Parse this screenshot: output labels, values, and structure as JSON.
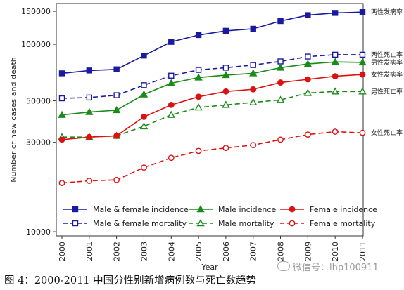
{
  "chart_data": {
    "type": "line",
    "y_scale": "log",
    "ylim": [
      9500,
      165000
    ],
    "ylabel": "Number of new cases and death",
    "xlabel": "Year",
    "categories": [
      "2000",
      "2001",
      "2002",
      "2003",
      "2004",
      "2005",
      "2006",
      "2007",
      "2008",
      "2009",
      "2010",
      "2011"
    ],
    "y_ticks": [
      10000,
      30000,
      50000,
      100000,
      150000
    ],
    "y_tick_labels": [
      "10000",
      "30000",
      "50000",
      "100000",
      "150000"
    ],
    "grid": false,
    "series": [
      {
        "name": "Male & female incidence",
        "end_label": "两性发病率",
        "color": "#1a1aa0",
        "style": "solid",
        "marker": "square-filled",
        "values": [
          70000,
          72500,
          73500,
          87000,
          103000,
          112000,
          118000,
          121000,
          133000,
          143000,
          147000,
          148500
        ]
      },
      {
        "name": "Male & female mortality",
        "end_label": "两性死亡率",
        "color": "#1a1aa0",
        "style": "dashed",
        "marker": "square-open",
        "values": [
          51500,
          52000,
          53500,
          60500,
          68000,
          73000,
          75000,
          77500,
          81000,
          86000,
          88000,
          88000
        ]
      },
      {
        "name": "Male incidence",
        "end_label": "男性发病率",
        "color": "#1a8a1a",
        "style": "solid",
        "marker": "triangle-filled",
        "values": [
          42000,
          43500,
          44500,
          54000,
          62000,
          66500,
          68500,
          70000,
          75000,
          78500,
          80500,
          80000
        ]
      },
      {
        "name": "Male mortality",
        "end_label": "男性死亡率",
        "color": "#1a8a1a",
        "style": "dashed",
        "marker": "triangle-open",
        "values": [
          32000,
          32000,
          32500,
          36500,
          42000,
          46000,
          47500,
          49000,
          50500,
          55000,
          56000,
          56000
        ]
      },
      {
        "name": "Female incidence",
        "end_label": "女性发病率",
        "color": "#dd1111",
        "style": "solid",
        "marker": "circle-filled",
        "values": [
          31000,
          32000,
          32500,
          41000,
          47500,
          52500,
          56000,
          57500,
          62500,
          65000,
          67500,
          69000
        ]
      },
      {
        "name": "Female mortality",
        "end_label": "女性死亡率",
        "color": "#dd1111",
        "style": "dashed",
        "marker": "circle-open",
        "values": [
          18200,
          18700,
          18900,
          22000,
          24800,
          27000,
          28000,
          29000,
          31000,
          33000,
          34200,
          33700
        ]
      }
    ],
    "legend_placement": "bottom-inside",
    "legend_order": [
      "Male & female incidence",
      "Male incidence",
      "Female incidence",
      "Male & female mortality",
      "Male mortality",
      "Female mortality"
    ]
  },
  "caption": "图 4：2000-2011 中国分性别新增病例数与死亡数趋势",
  "watermark": "微信号：lhp100911"
}
